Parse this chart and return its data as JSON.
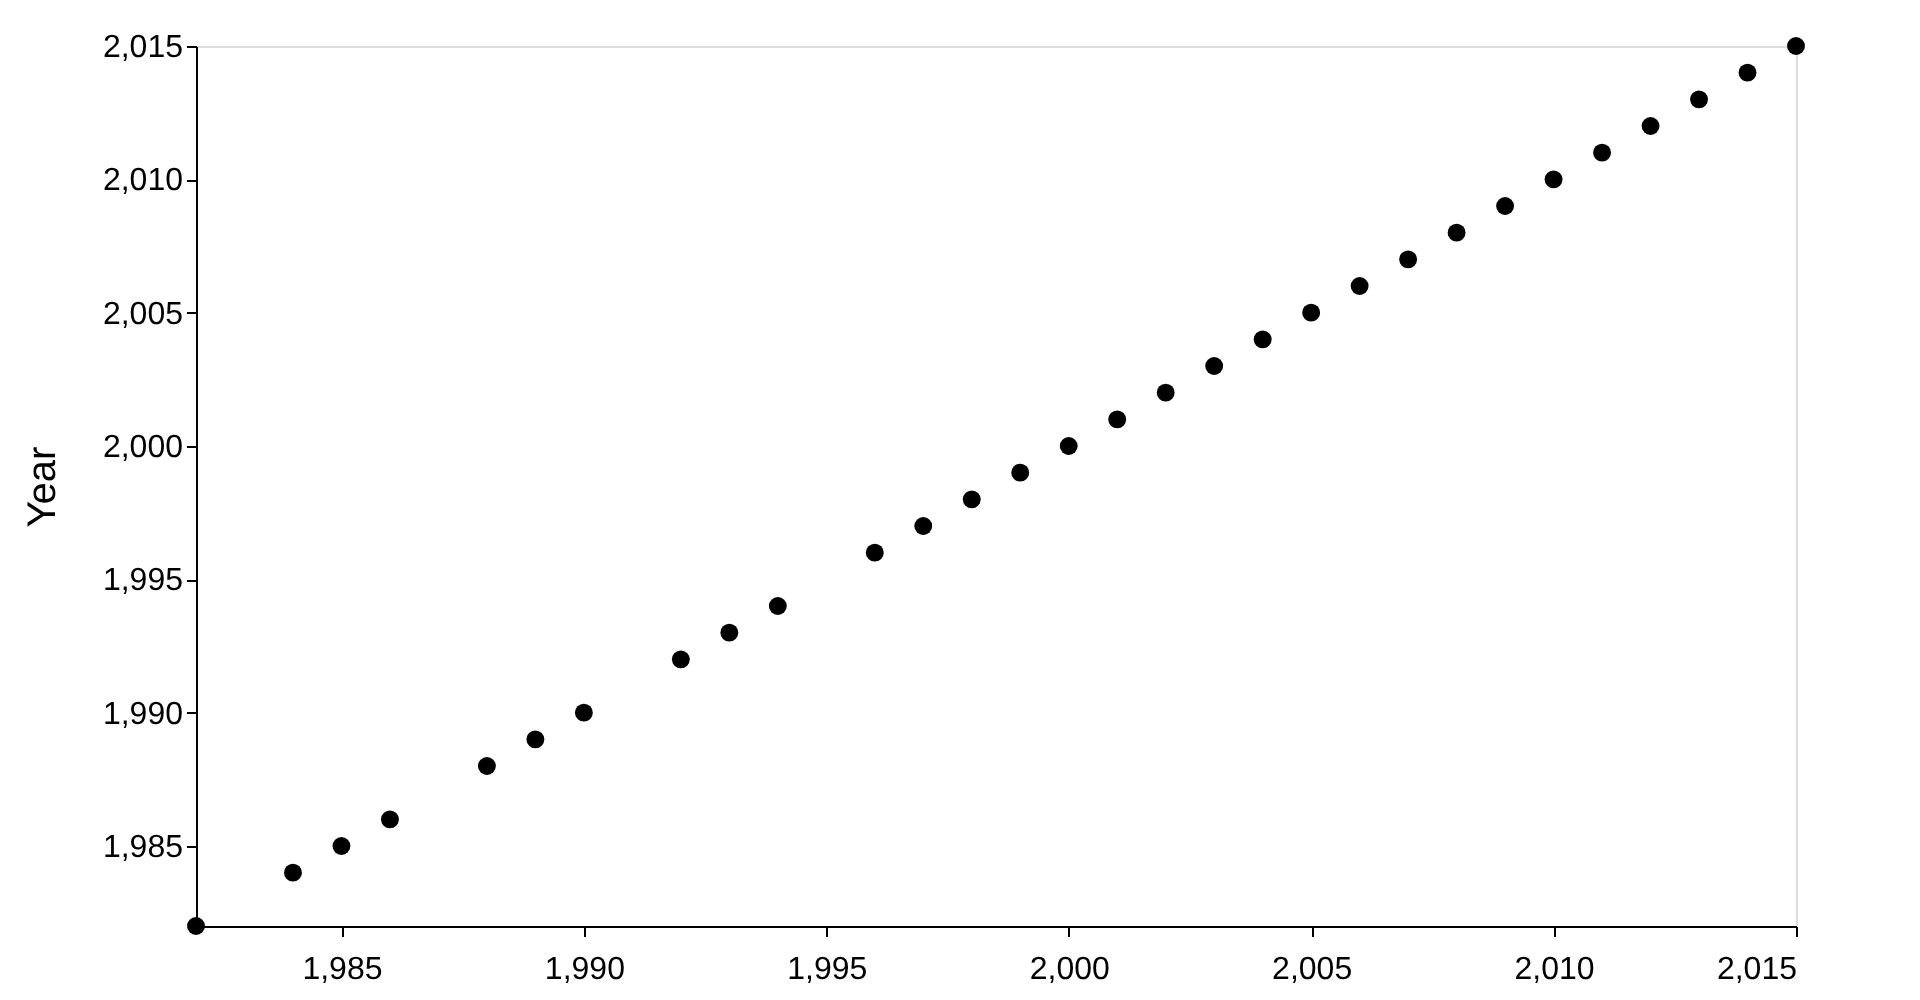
{
  "chart_data": {
    "type": "scatter",
    "ylabel": "Year",
    "x": [
      1982,
      1984,
      1985,
      1986,
      1988,
      1989,
      1990,
      1992,
      1993,
      1994,
      1996,
      1997,
      1998,
      1999,
      2000,
      2001,
      2002,
      2003,
      2004,
      2005,
      2006,
      2007,
      2008,
      2009,
      2010,
      2011,
      2012,
      2013,
      2014,
      2015
    ],
    "series": [
      {
        "color": "#000000",
        "values": [
          1982,
          1984,
          1985,
          1986,
          1988,
          1989,
          1990,
          1992,
          1993,
          1994,
          1996,
          1997,
          1998,
          1999,
          2000,
          2001,
          2002,
          2003,
          2004,
          2005,
          2006,
          2007,
          2008,
          2009,
          2010,
          2011,
          2012,
          2013,
          2014,
          2015
        ]
      }
    ],
    "xlim": [
      1982,
      2015
    ],
    "ylim": [
      1982,
      2015
    ],
    "xticks": [
      {
        "value": 1985,
        "label": "1,985"
      },
      {
        "value": 1990,
        "label": "1,990"
      },
      {
        "value": 1995,
        "label": "1,995"
      },
      {
        "value": 2000,
        "label": "2,000"
      },
      {
        "value": 2005,
        "label": "2,005"
      },
      {
        "value": 2010,
        "label": "2,010"
      },
      {
        "value": 2015,
        "label": "2,015"
      }
    ],
    "yticks": [
      {
        "value": 1985,
        "label": "1,985"
      },
      {
        "value": 1990,
        "label": "1,990"
      },
      {
        "value": 1995,
        "label": "1,995"
      },
      {
        "value": 2000,
        "label": "2,000"
      },
      {
        "value": 2005,
        "label": "2,005"
      },
      {
        "value": 2010,
        "label": "2,010"
      },
      {
        "value": 2015,
        "label": "2,015"
      }
    ],
    "grid": false,
    "marker": "circle"
  }
}
